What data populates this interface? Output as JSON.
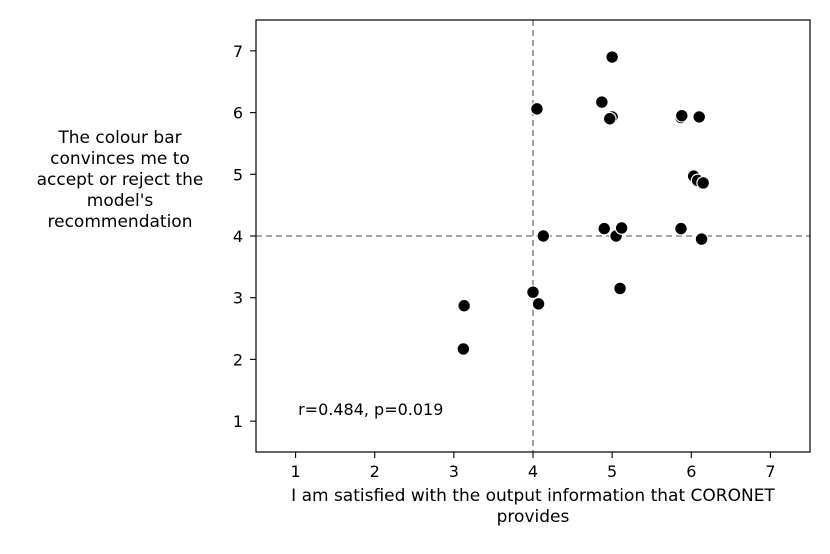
{
  "chart_data": {
    "type": "scatter",
    "title": "",
    "xlabel_lines": [
      "I am satisfied with the output information that CORONET",
      "provides"
    ],
    "ylabel_lines": [
      "The colour bar",
      "convinces me to",
      "accept or reject the",
      "model's",
      "recommendation"
    ],
    "xlim": [
      0.5,
      7.5
    ],
    "ylim": [
      0.5,
      7.5
    ],
    "xticks": [
      1,
      2,
      3,
      4,
      5,
      6,
      7
    ],
    "yticks": [
      1,
      2,
      3,
      4,
      5,
      6,
      7
    ],
    "grid": false,
    "reference_lines": {
      "x": 4,
      "y": 4,
      "style": "dashed",
      "color": "#888888"
    },
    "annotation": {
      "text": "r=0.484, p=0.019",
      "x": 1.95,
      "y": 1.1
    },
    "marker_color": "#000000",
    "marker_edge_color": "#ffffff",
    "points": [
      {
        "x": 3.13,
        "y": 2.87
      },
      {
        "x": 3.12,
        "y": 2.17
      },
      {
        "x": 4.0,
        "y": 3.09
      },
      {
        "x": 4.07,
        "y": 2.9
      },
      {
        "x": 4.05,
        "y": 6.06
      },
      {
        "x": 4.13,
        "y": 4.0
      },
      {
        "x": 4.87,
        "y": 6.17
      },
      {
        "x": 5.0,
        "y": 6.9
      },
      {
        "x": 5.0,
        "y": 5.93
      },
      {
        "x": 4.97,
        "y": 5.9
      },
      {
        "x": 4.9,
        "y": 4.12
      },
      {
        "x": 5.05,
        "y": 4.0
      },
      {
        "x": 5.12,
        "y": 4.13
      },
      {
        "x": 5.1,
        "y": 3.15
      },
      {
        "x": 5.87,
        "y": 5.92
      },
      {
        "x": 5.88,
        "y": 5.95
      },
      {
        "x": 6.1,
        "y": 5.93
      },
      {
        "x": 6.03,
        "y": 4.97
      },
      {
        "x": 6.08,
        "y": 4.9
      },
      {
        "x": 6.15,
        "y": 4.86
      },
      {
        "x": 5.87,
        "y": 4.12
      },
      {
        "x": 6.13,
        "y": 3.95
      }
    ]
  }
}
